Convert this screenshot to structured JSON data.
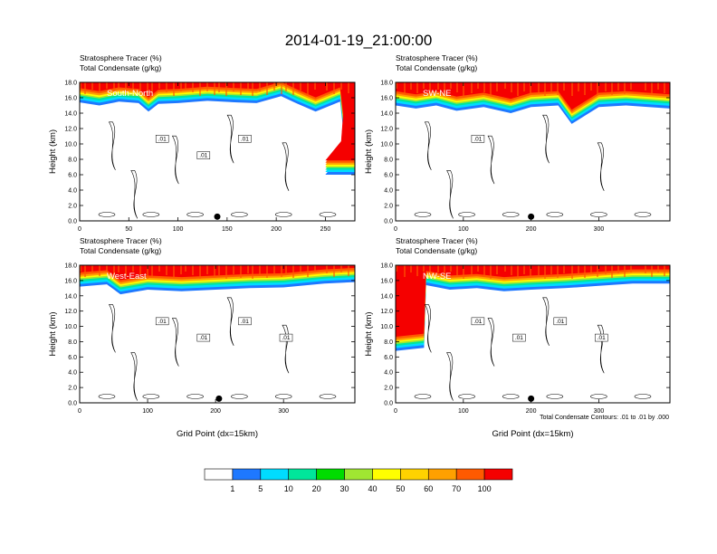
{
  "title": "2014-01-19_21:00:00",
  "colors": {
    "scale": [
      "#ffffff",
      "#1e78ff",
      "#00dcff",
      "#00e69b",
      "#00dc00",
      "#a0e632",
      "#ffff00",
      "#ffd200",
      "#ffa000",
      "#ff5a00",
      "#f50000"
    ],
    "contour": "#000000"
  },
  "colorbar": {
    "labels": [
      "1",
      "5",
      "10",
      "20",
      "30",
      "40",
      "50",
      "60",
      "70",
      "100"
    ]
  },
  "footnote": "Total Condensate Contours: .01 to .01 by .000",
  "chart_data": [
    {
      "type": "heatmap",
      "name": "South-North",
      "label": "South-North",
      "fields": [
        "Stratosphere Tracer   (%)",
        "Total Condensate   (g/kg)"
      ],
      "ylabel": "Height (km)",
      "xlabel": "",
      "xlim": [
        0,
        280
      ],
      "ylim": [
        0,
        18
      ],
      "xticks": [
        "0",
        "50",
        "100",
        "150",
        "200",
        "250"
      ],
      "yticks": [
        "0.0",
        "2.0",
        "4.0",
        "6.0",
        "8.0",
        "10.0",
        "12.0",
        "14.0",
        "16.0",
        "18.0"
      ],
      "tracer_base_km": [
        [
          0,
          15.4
        ],
        [
          20,
          15.0
        ],
        [
          40,
          15.5
        ],
        [
          60,
          15.3
        ],
        [
          70,
          14.2
        ],
        [
          80,
          15.2
        ],
        [
          100,
          15.3
        ],
        [
          130,
          15.6
        ],
        [
          160,
          15.4
        ],
        [
          180,
          15.3
        ],
        [
          205,
          16.2
        ],
        [
          220,
          15.3
        ],
        [
          240,
          14.2
        ],
        [
          265,
          15.5
        ],
        [
          268,
          12.0
        ],
        [
          266,
          8.5
        ],
        [
          250,
          6.0
        ],
        [
          280,
          6.0
        ]
      ],
      "contour_labels": [
        ".01",
        ".01",
        ".01"
      ],
      "marker_x": 140
    },
    {
      "type": "heatmap",
      "name": "SW-NE",
      "label": "SW-NE",
      "fields": [
        "Stratosphere Tracer   (%)",
        "Total Condensate   (g/kg)"
      ],
      "ylabel": "Height (km)",
      "xlabel": "",
      "xlim": [
        0,
        405
      ],
      "ylim": [
        0,
        18
      ],
      "xticks": [
        "0",
        "100",
        "200",
        "300"
      ],
      "yticks": [
        "0.0",
        "2.0",
        "4.0",
        "6.0",
        "8.0",
        "10.0",
        "12.0",
        "14.0",
        "16.0",
        "18.0"
      ],
      "tracer_base_km": [
        [
          0,
          15.0
        ],
        [
          30,
          14.6
        ],
        [
          60,
          15.0
        ],
        [
          90,
          14.3
        ],
        [
          130,
          14.8
        ],
        [
          170,
          14.0
        ],
        [
          200,
          14.8
        ],
        [
          240,
          15.0
        ],
        [
          260,
          12.6
        ],
        [
          300,
          14.8
        ],
        [
          340,
          15.0
        ],
        [
          405,
          14.6
        ]
      ],
      "contour_labels": [
        ".01"
      ],
      "marker_x": 200
    },
    {
      "type": "heatmap",
      "name": "West-East",
      "label": "West-East",
      "fields": [
        "Stratosphere Tracer   (%)",
        "Total Condensate   (g/kg)"
      ],
      "ylabel": "Height (km)",
      "xlabel": "Grid Point (dx=15km)",
      "xlim": [
        0,
        405
      ],
      "ylim": [
        0,
        18
      ],
      "xticks": [
        "0",
        "100",
        "200",
        "300"
      ],
      "yticks": [
        "0.0",
        "2.0",
        "4.0",
        "6.0",
        "8.0",
        "10.0",
        "12.0",
        "14.0",
        "16.0",
        "18.0"
      ],
      "tracer_base_km": [
        [
          0,
          15.2
        ],
        [
          40,
          15.5
        ],
        [
          60,
          14.2
        ],
        [
          100,
          14.8
        ],
        [
          150,
          14.6
        ],
        [
          200,
          14.8
        ],
        [
          250,
          15.0
        ],
        [
          300,
          15.1
        ],
        [
          360,
          15.6
        ],
        [
          405,
          15.8
        ]
      ],
      "contour_labels": [
        ".01",
        ".01",
        ".01",
        ".01"
      ],
      "marker_x": 205
    },
    {
      "type": "heatmap",
      "name": "NW-SE",
      "label": "NW-SE",
      "fields": [
        "Stratosphere Tracer   (%)",
        "Total Condensate   (g/kg)"
      ],
      "ylabel": "Height (km)",
      "xlabel": "Grid Point (dx=15km)",
      "xlim": [
        0,
        405
      ],
      "ylim": [
        0,
        18
      ],
      "xticks": [
        "0",
        "100",
        "200",
        "300"
      ],
      "yticks": [
        "0.0",
        "2.0",
        "4.0",
        "6.0",
        "8.0",
        "10.0",
        "12.0",
        "14.0",
        "16.0",
        "18.0"
      ],
      "tracer_base_km": [
        [
          0,
          6.8
        ],
        [
          42,
          7.2
        ],
        [
          45,
          15.4
        ],
        [
          80,
          14.8
        ],
        [
          120,
          15.0
        ],
        [
          160,
          14.6
        ],
        [
          200,
          14.8
        ],
        [
          250,
          15.0
        ],
        [
          300,
          15.3
        ],
        [
          350,
          15.6
        ],
        [
          405,
          15.6
        ]
      ],
      "contour_labels": [
        ".01",
        ".01",
        ".01",
        ".01"
      ],
      "marker_x": 200
    }
  ]
}
